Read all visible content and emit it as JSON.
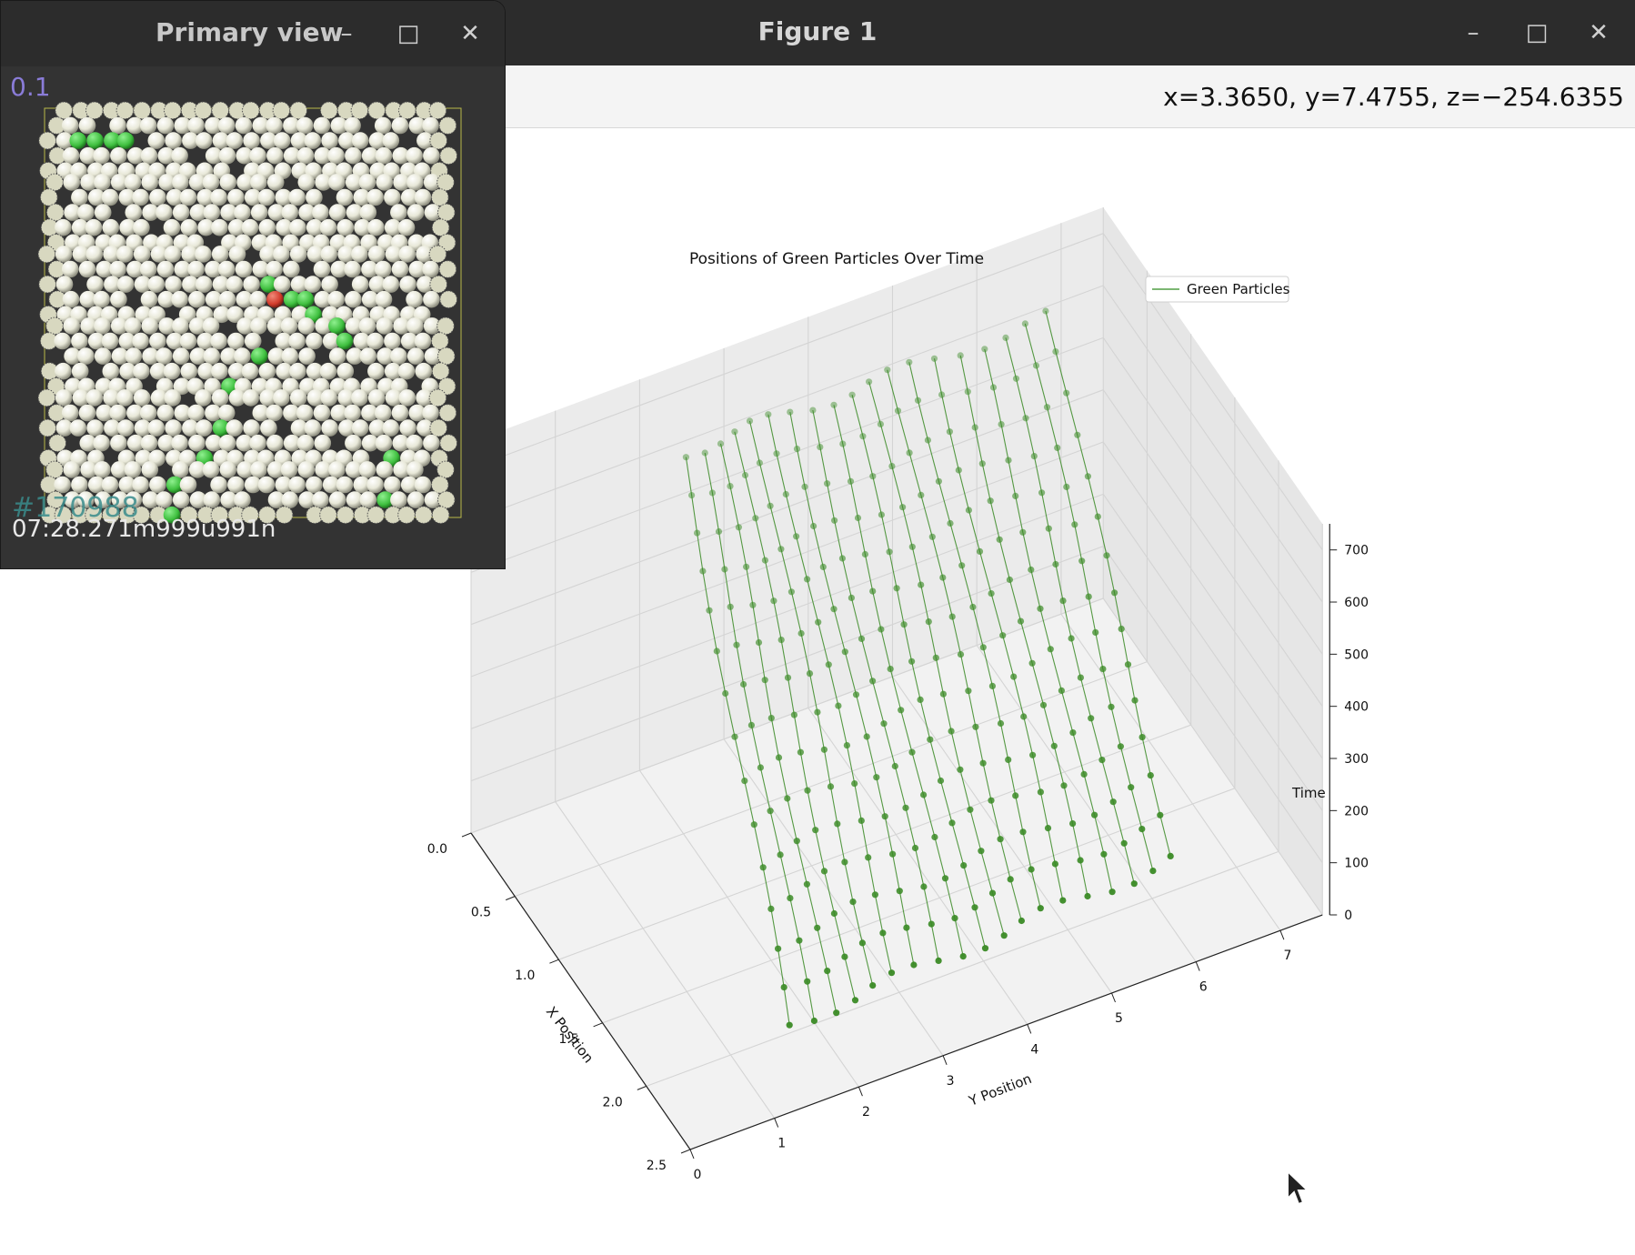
{
  "figure_window": {
    "title": "Figure 1",
    "coordinates_readout": "x=3.3650, y=7.4755, z=−254.6355",
    "minimize_icon": "minimize-icon",
    "maximize_icon": "maximize-icon",
    "close_icon": "close-icon",
    "minimize_glyph": "–",
    "maximize_glyph": "□",
    "close_glyph": "✕"
  },
  "primary_view": {
    "title": "Primary view",
    "scale_label": "0.1",
    "overlay_id": "#170988",
    "timestamp": "07:28.271m999u991n",
    "minimize_glyph": "–",
    "maximize_glyph": "□",
    "close_glyph": "✕"
  },
  "chart_data": {
    "type": "line",
    "projection": "3d",
    "title": "Positions of Green Particles Over Time",
    "xlabel": "X Position",
    "ylabel": "Y Position",
    "zlabel": "Time",
    "x_ticks": [
      "0.0",
      "0.5",
      "1.0",
      "1.5",
      "2.0",
      "2.5"
    ],
    "y_ticks": [
      "0",
      "1",
      "2",
      "3",
      "4",
      "5",
      "6",
      "7"
    ],
    "z_ticks": [
      "0",
      "100",
      "200",
      "300",
      "400",
      "500",
      "600",
      "700"
    ],
    "xlim": [
      0,
      2.5
    ],
    "ylim": [
      0,
      7.5
    ],
    "zlim": [
      0,
      750
    ],
    "legend": [
      {
        "label": "Green Particles",
        "color": "#2e8b1e"
      }
    ],
    "legend_position": "top-right",
    "grid": true,
    "series_color": "#3a8a25",
    "particle_count": 19,
    "time_steps": [
      0,
      50,
      100,
      150,
      200,
      250,
      300,
      350,
      400,
      450,
      500,
      550,
      600,
      650,
      700
    ],
    "note_values": "trajectories of 19 green particles; x drifts from ~0.3 to ~1.9, y spans ~1.6 to ~6.5 across time 0–700"
  },
  "colors": {
    "titlebar": "#2c2c2c",
    "particle_green": "#3fbf3f",
    "particle_red": "#d23b2b",
    "particle_white": "#e8e8d8"
  }
}
